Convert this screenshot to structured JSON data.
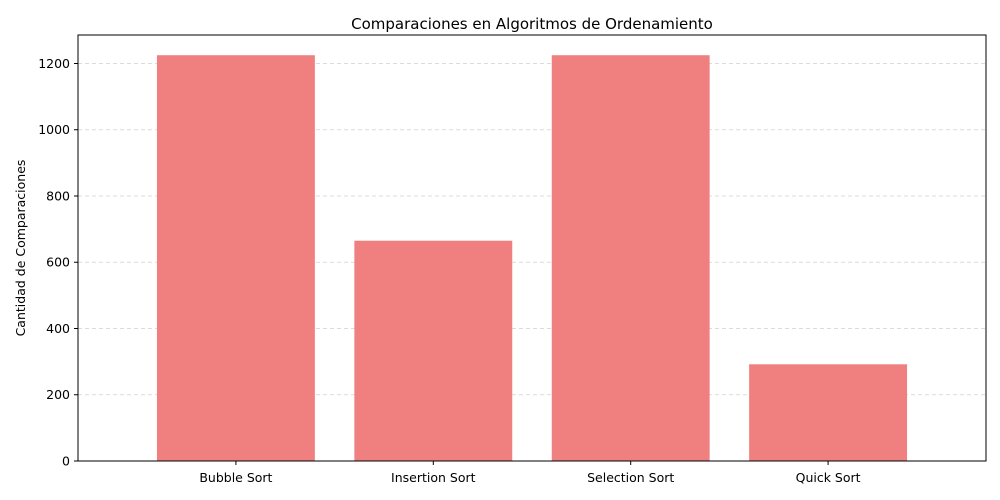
{
  "chart_data": {
    "type": "bar",
    "title": "Comparaciones en Algoritmos de Ordenamiento",
    "xlabel": "",
    "ylabel": "Cantidad de Comparaciones",
    "categories": [
      "Bubble Sort",
      "Insertion Sort",
      "Selection Sort",
      "Quick Sort"
    ],
    "values": [
      1225,
      665,
      1225,
      292
    ],
    "ylim": [
      0,
      1286
    ],
    "yticks": [
      0,
      200,
      400,
      600,
      800,
      1000,
      1200
    ],
    "grid": "y-dashed",
    "bar_color": "#f08080"
  }
}
